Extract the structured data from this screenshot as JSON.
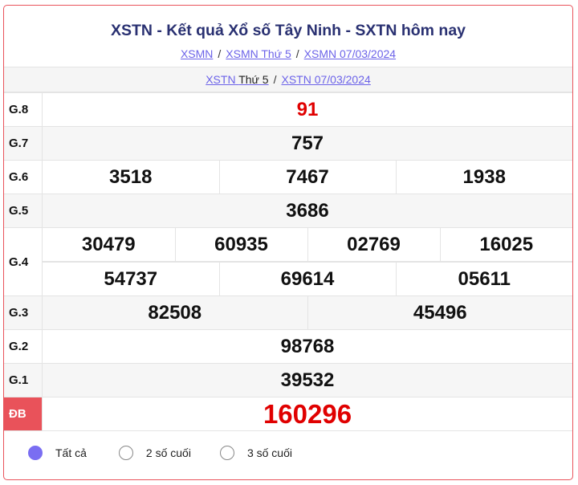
{
  "header": {
    "title": "XSTN - Kết quả Xổ số Tây Ninh - SXTN hôm nay",
    "breadcrumbs": [
      "XSMN",
      "XSMN Thứ 5",
      "XSMN 07/03/2024"
    ],
    "sub_links": {
      "link1_a": "XSTN",
      "link1_b": "Thứ 5",
      "link2": "XSTN 07/03/2024"
    },
    "separator": "/"
  },
  "prizes": {
    "g8": {
      "label": "G.8",
      "values": [
        "91"
      ]
    },
    "g7": {
      "label": "G.7",
      "values": [
        "757"
      ]
    },
    "g6": {
      "label": "G.6",
      "values": [
        "3518",
        "7467",
        "1938"
      ]
    },
    "g5": {
      "label": "G.5",
      "values": [
        "3686"
      ]
    },
    "g4": {
      "label": "G.4",
      "values": [
        "30479",
        "60935",
        "02769",
        "16025",
        "54737",
        "69614",
        "05611"
      ]
    },
    "g3": {
      "label": "G.3",
      "values": [
        "82508",
        "45496"
      ]
    },
    "g2": {
      "label": "G.2",
      "values": [
        "98768"
      ]
    },
    "g1": {
      "label": "G.1",
      "values": [
        "39532"
      ]
    },
    "db": {
      "label": "ĐB",
      "values": [
        "160296"
      ]
    }
  },
  "filter": {
    "options": [
      "Tất cả",
      "2 số cuối",
      "3 số cuối"
    ],
    "selected": "Tất cả"
  },
  "colors": {
    "accent": "#e9525a",
    "title": "#2a3172",
    "link": "#6c63e9",
    "highlight": "#e00000",
    "radio": "#7a6ef2"
  }
}
